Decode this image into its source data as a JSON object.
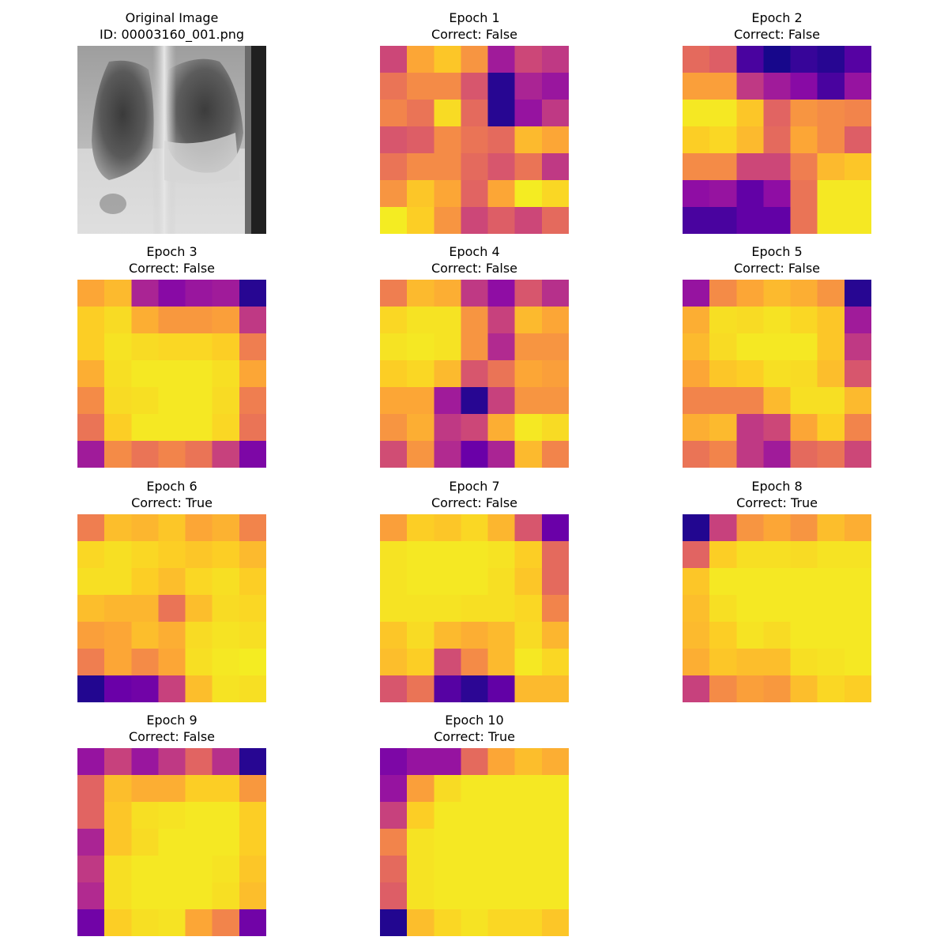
{
  "figure": {
    "original": {
      "title_line1": "Original Image",
      "title_line2": "ID: 00003160_001.png",
      "image_name": "chest-xray-image"
    },
    "colormap": "plasma",
    "panels": [
      {
        "title": "Epoch 1",
        "subtitle": "Correct: False"
      },
      {
        "title": "Epoch 2",
        "subtitle": "Correct: False"
      },
      {
        "title": "Epoch 3",
        "subtitle": "Correct: False"
      },
      {
        "title": "Epoch 4",
        "subtitle": "Correct: False"
      },
      {
        "title": "Epoch 5",
        "subtitle": "Correct: False"
      },
      {
        "title": "Epoch 6",
        "subtitle": "Correct: True"
      },
      {
        "title": "Epoch 7",
        "subtitle": "Correct: False"
      },
      {
        "title": "Epoch 8",
        "subtitle": "Correct: True"
      },
      {
        "title": "Epoch 9",
        "subtitle": "Correct: False"
      },
      {
        "title": "Epoch 10",
        "subtitle": "Correct: True"
      }
    ]
  },
  "chart_data": [
    {
      "type": "heatmap",
      "title": "Epoch 1\nCorrect: False",
      "values": [
        [
          0.5,
          0.8,
          0.88,
          0.75,
          0.35,
          0.5,
          0.45
        ],
        [
          0.65,
          0.72,
          0.72,
          0.55,
          0.05,
          0.38,
          0.33
        ],
        [
          0.7,
          0.65,
          0.93,
          0.62,
          0.05,
          0.32,
          0.45
        ],
        [
          0.55,
          0.58,
          0.72,
          0.65,
          0.62,
          0.85,
          0.8
        ],
        [
          0.65,
          0.72,
          0.72,
          0.62,
          0.55,
          0.65,
          0.45
        ],
        [
          0.75,
          0.88,
          0.8,
          0.6,
          0.8,
          0.97,
          0.92
        ],
        [
          0.97,
          0.9,
          0.75,
          0.5,
          0.58,
          0.5,
          0.62
        ]
      ]
    },
    {
      "type": "heatmap",
      "title": "Epoch 2\nCorrect: False",
      "values": [
        [
          0.62,
          0.58,
          0.12,
          0.02,
          0.08,
          0.05,
          0.15
        ],
        [
          0.78,
          0.78,
          0.45,
          0.35,
          0.28,
          0.12,
          0.32
        ],
        [
          0.96,
          0.96,
          0.88,
          0.6,
          0.75,
          0.72,
          0.7
        ],
        [
          0.9,
          0.92,
          0.85,
          0.62,
          0.8,
          0.72,
          0.58
        ],
        [
          0.72,
          0.72,
          0.5,
          0.5,
          0.68,
          0.85,
          0.88
        ],
        [
          0.3,
          0.32,
          0.18,
          0.3,
          0.65,
          0.96,
          0.96
        ],
        [
          0.12,
          0.12,
          0.18,
          0.18,
          0.65,
          0.96,
          0.96
        ]
      ]
    },
    {
      "type": "heatmap",
      "title": "Epoch 3\nCorrect: False",
      "values": [
        [
          0.8,
          0.85,
          0.38,
          0.28,
          0.33,
          0.35,
          0.05
        ],
        [
          0.9,
          0.93,
          0.82,
          0.76,
          0.76,
          0.78,
          0.45
        ],
        [
          0.9,
          0.95,
          0.93,
          0.92,
          0.92,
          0.9,
          0.68
        ],
        [
          0.82,
          0.94,
          0.96,
          0.96,
          0.96,
          0.94,
          0.8
        ],
        [
          0.72,
          0.93,
          0.94,
          0.96,
          0.96,
          0.93,
          0.68
        ],
        [
          0.65,
          0.9,
          0.96,
          0.96,
          0.96,
          0.92,
          0.65
        ],
        [
          0.35,
          0.72,
          0.65,
          0.7,
          0.65,
          0.48,
          0.25
        ]
      ]
    },
    {
      "type": "heatmap",
      "title": "Epoch 4\nCorrect: False",
      "values": [
        [
          0.68,
          0.85,
          0.82,
          0.45,
          0.3,
          0.55,
          0.42
        ],
        [
          0.92,
          0.95,
          0.95,
          0.75,
          0.48,
          0.85,
          0.8
        ],
        [
          0.95,
          0.96,
          0.95,
          0.75,
          0.4,
          0.75,
          0.75
        ],
        [
          0.9,
          0.92,
          0.85,
          0.55,
          0.65,
          0.8,
          0.78
        ],
        [
          0.8,
          0.8,
          0.35,
          0.05,
          0.48,
          0.75,
          0.75
        ],
        [
          0.75,
          0.82,
          0.45,
          0.5,
          0.82,
          0.96,
          0.93
        ],
        [
          0.52,
          0.75,
          0.4,
          0.2,
          0.38,
          0.85,
          0.7
        ]
      ]
    },
    {
      "type": "heatmap",
      "title": "Epoch 5\nCorrect: False",
      "values": [
        [
          0.32,
          0.72,
          0.8,
          0.85,
          0.82,
          0.75,
          0.05
        ],
        [
          0.82,
          0.94,
          0.93,
          0.95,
          0.92,
          0.88,
          0.35
        ],
        [
          0.85,
          0.93,
          0.96,
          0.96,
          0.96,
          0.88,
          0.45
        ],
        [
          0.8,
          0.88,
          0.9,
          0.94,
          0.93,
          0.86,
          0.55
        ],
        [
          0.7,
          0.7,
          0.7,
          0.85,
          0.94,
          0.94,
          0.85
        ],
        [
          0.82,
          0.85,
          0.45,
          0.5,
          0.8,
          0.9,
          0.7
        ],
        [
          0.65,
          0.7,
          0.45,
          0.35,
          0.62,
          0.65,
          0.5
        ]
      ]
    },
    {
      "type": "heatmap",
      "title": "Epoch 6\nCorrect: True",
      "values": [
        [
          0.68,
          0.86,
          0.84,
          0.88,
          0.8,
          0.83,
          0.7
        ],
        [
          0.92,
          0.94,
          0.92,
          0.9,
          0.88,
          0.9,
          0.85
        ],
        [
          0.94,
          0.94,
          0.9,
          0.86,
          0.92,
          0.94,
          0.9
        ],
        [
          0.86,
          0.84,
          0.84,
          0.65,
          0.86,
          0.93,
          0.92
        ],
        [
          0.78,
          0.8,
          0.86,
          0.82,
          0.93,
          0.95,
          0.94
        ],
        [
          0.68,
          0.8,
          0.72,
          0.8,
          0.94,
          0.96,
          0.97
        ],
        [
          0.04,
          0.2,
          0.22,
          0.48,
          0.86,
          0.95,
          0.94
        ]
      ]
    },
    {
      "type": "heatmap",
      "title": "Epoch 7\nCorrect: False",
      "values": [
        [
          0.78,
          0.9,
          0.88,
          0.92,
          0.84,
          0.55,
          0.2
        ],
        [
          0.95,
          0.96,
          0.96,
          0.96,
          0.95,
          0.9,
          0.62
        ],
        [
          0.95,
          0.96,
          0.96,
          0.96,
          0.94,
          0.88,
          0.62
        ],
        [
          0.95,
          0.95,
          0.95,
          0.94,
          0.94,
          0.92,
          0.7
        ],
        [
          0.88,
          0.93,
          0.85,
          0.82,
          0.85,
          0.93,
          0.84
        ],
        [
          0.86,
          0.9,
          0.52,
          0.72,
          0.85,
          0.96,
          0.92
        ],
        [
          0.55,
          0.65,
          0.15,
          0.06,
          0.18,
          0.85,
          0.85
        ]
      ]
    },
    {
      "type": "heatmap",
      "title": "Epoch 8\nCorrect: True",
      "values": [
        [
          0.04,
          0.48,
          0.75,
          0.8,
          0.75,
          0.86,
          0.82
        ],
        [
          0.6,
          0.9,
          0.94,
          0.94,
          0.93,
          0.95,
          0.95
        ],
        [
          0.88,
          0.96,
          0.96,
          0.96,
          0.96,
          0.96,
          0.96
        ],
        [
          0.86,
          0.94,
          0.96,
          0.96,
          0.96,
          0.96,
          0.96
        ],
        [
          0.85,
          0.9,
          0.95,
          0.93,
          0.96,
          0.96,
          0.96
        ],
        [
          0.82,
          0.88,
          0.86,
          0.86,
          0.94,
          0.95,
          0.96
        ],
        [
          0.48,
          0.72,
          0.78,
          0.76,
          0.86,
          0.92,
          0.9
        ]
      ]
    },
    {
      "type": "heatmap",
      "title": "Epoch 9\nCorrect: False",
      "values": [
        [
          0.32,
          0.48,
          0.33,
          0.45,
          0.6,
          0.42,
          0.05
        ],
        [
          0.6,
          0.86,
          0.82,
          0.82,
          0.9,
          0.9,
          0.76
        ],
        [
          0.6,
          0.88,
          0.94,
          0.95,
          0.96,
          0.96,
          0.9
        ],
        [
          0.38,
          0.88,
          0.93,
          0.96,
          0.96,
          0.96,
          0.9
        ],
        [
          0.45,
          0.94,
          0.96,
          0.96,
          0.96,
          0.95,
          0.88
        ],
        [
          0.4,
          0.94,
          0.96,
          0.96,
          0.96,
          0.94,
          0.86
        ],
        [
          0.22,
          0.9,
          0.94,
          0.95,
          0.8,
          0.7,
          0.22
        ]
      ]
    },
    {
      "type": "heatmap",
      "title": "Epoch 10\nCorrect: True",
      "values": [
        [
          0.25,
          0.32,
          0.32,
          0.62,
          0.8,
          0.86,
          0.82
        ],
        [
          0.32,
          0.78,
          0.93,
          0.96,
          0.96,
          0.96,
          0.96
        ],
        [
          0.48,
          0.9,
          0.96,
          0.96,
          0.96,
          0.96,
          0.96
        ],
        [
          0.7,
          0.95,
          0.96,
          0.96,
          0.96,
          0.96,
          0.96
        ],
        [
          0.62,
          0.95,
          0.96,
          0.96,
          0.96,
          0.96,
          0.96
        ],
        [
          0.58,
          0.95,
          0.96,
          0.96,
          0.96,
          0.96,
          0.96
        ],
        [
          0.04,
          0.86,
          0.92,
          0.95,
          0.92,
          0.92,
          0.88
        ]
      ]
    }
  ]
}
